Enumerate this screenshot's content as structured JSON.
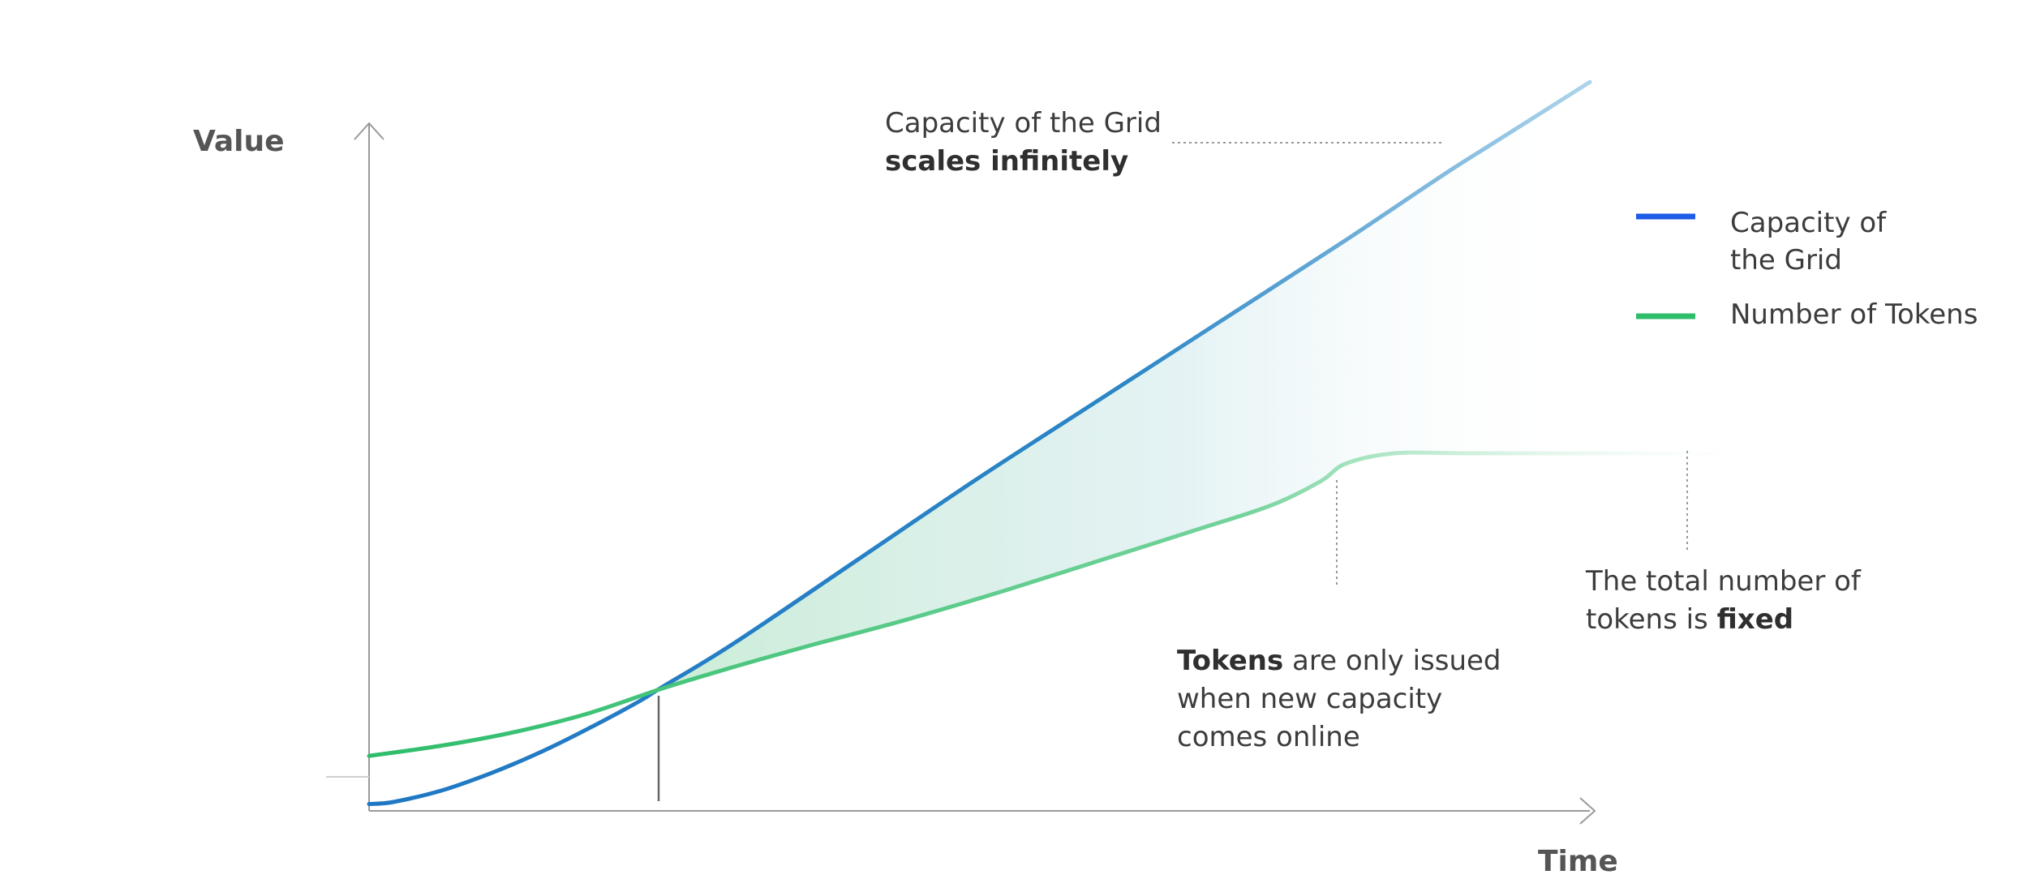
{
  "colors": {
    "capacity": "#1f77c4",
    "tokens": "#2ebd6b",
    "legend_capacity": "#1e5be6",
    "legend_tokens": "#2ebd6b",
    "axis": "#9a9a9a",
    "text": "#3c3c3c"
  },
  "chart_data": {
    "type": "line",
    "xlabel": "Time",
    "ylabel": "Value",
    "xlim": [
      0,
      100
    ],
    "ylim": [
      0,
      100
    ],
    "grid": false,
    "legend_position": "right",
    "series": [
      {
        "name": "Capacity of the Grid",
        "legend_lines": [
          "Capacity of",
          "the Grid"
        ],
        "color": "capacity",
        "x": [
          0,
          2,
          6,
          10,
          14,
          18,
          22,
          24,
          30,
          40,
          50,
          60,
          70,
          80,
          88,
          92,
          96,
          100
        ],
        "y": [
          1,
          1.3,
          3,
          5.5,
          8.5,
          12,
          15.8,
          18,
          24.5,
          36.5,
          48.5,
          60,
          71.5,
          83,
          92.5,
          97,
          101.5,
          106
        ]
      },
      {
        "name": "Number of Tokens",
        "legend_lines": [
          "Number of Tokens"
        ],
        "color": "tokens",
        "x": [
          0,
          6,
          12,
          18,
          24,
          30,
          36,
          44,
          52,
          60,
          68,
          74,
          78,
          80,
          84,
          90,
          100,
          115
        ],
        "y": [
          8,
          9.5,
          11.5,
          14.2,
          17.8,
          21,
          24,
          27.8,
          32,
          36.5,
          41,
          44.5,
          48,
          50.5,
          52,
          52,
          52,
          52
        ]
      }
    ],
    "annotations": [
      {
        "name": "capacity-note",
        "lines": [
          [
            {
              "t": "Capacity of the Grid",
              "b": false
            }
          ],
          [
            {
              "t": "scales infinitely",
              "b": true
            }
          ]
        ]
      },
      {
        "name": "tokens-issued-note",
        "lines": [
          [
            {
              "t": "Tokens",
              "b": true
            },
            {
              "t": " are only issued",
              "b": false
            }
          ],
          [
            {
              "t": "when new capacity",
              "b": false
            }
          ],
          [
            {
              "t": "comes online",
              "b": false
            }
          ]
        ]
      },
      {
        "name": "tokens-fixed-note",
        "lines": [
          [
            {
              "t": "The total number of",
              "b": false
            }
          ],
          [
            {
              "t": "tokens is ",
              "b": false
            },
            {
              "t": "fixed",
              "b": true
            }
          ]
        ]
      }
    ]
  }
}
